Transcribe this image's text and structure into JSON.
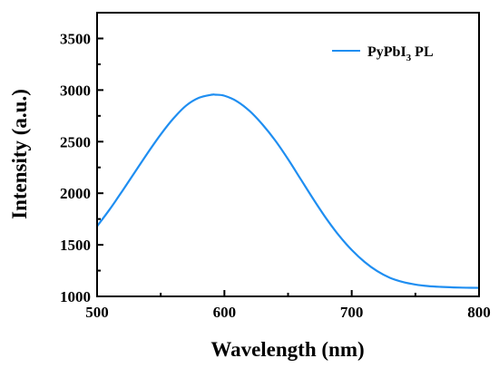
{
  "chart_data": {
    "type": "line",
    "title": "",
    "xlabel": "Wavelength (nm)",
    "ylabel": "Intensity (a.u.)",
    "xlim": [
      500,
      800
    ],
    "ylim": [
      1000,
      3750
    ],
    "x_ticks": [
      500,
      600,
      700,
      800
    ],
    "y_ticks": [
      1000,
      1500,
      2000,
      2500,
      3000,
      3500
    ],
    "grid": false,
    "legend_position": "top-right",
    "series": [
      {
        "name": "PyPbI3 PL",
        "color": "#1f8ef1",
        "x": [
          500,
          510,
          520,
          530,
          540,
          550,
          560,
          570,
          580,
          590,
          593,
          600,
          610,
          620,
          630,
          640,
          650,
          660,
          670,
          680,
          690,
          700,
          710,
          720,
          730,
          740,
          750,
          760,
          770,
          780,
          790,
          800
        ],
        "y": [
          1680,
          1845,
          2025,
          2210,
          2395,
          2570,
          2725,
          2850,
          2925,
          2955,
          2955,
          2945,
          2890,
          2795,
          2665,
          2510,
          2330,
          2135,
          1940,
          1755,
          1590,
          1450,
          1335,
          1245,
          1180,
          1140,
          1115,
          1100,
          1092,
          1087,
          1084,
          1083
        ]
      }
    ]
  },
  "legend": {
    "label_main": "PyPbI",
    "label_sub": "3",
    "label_suffix": " PL"
  }
}
